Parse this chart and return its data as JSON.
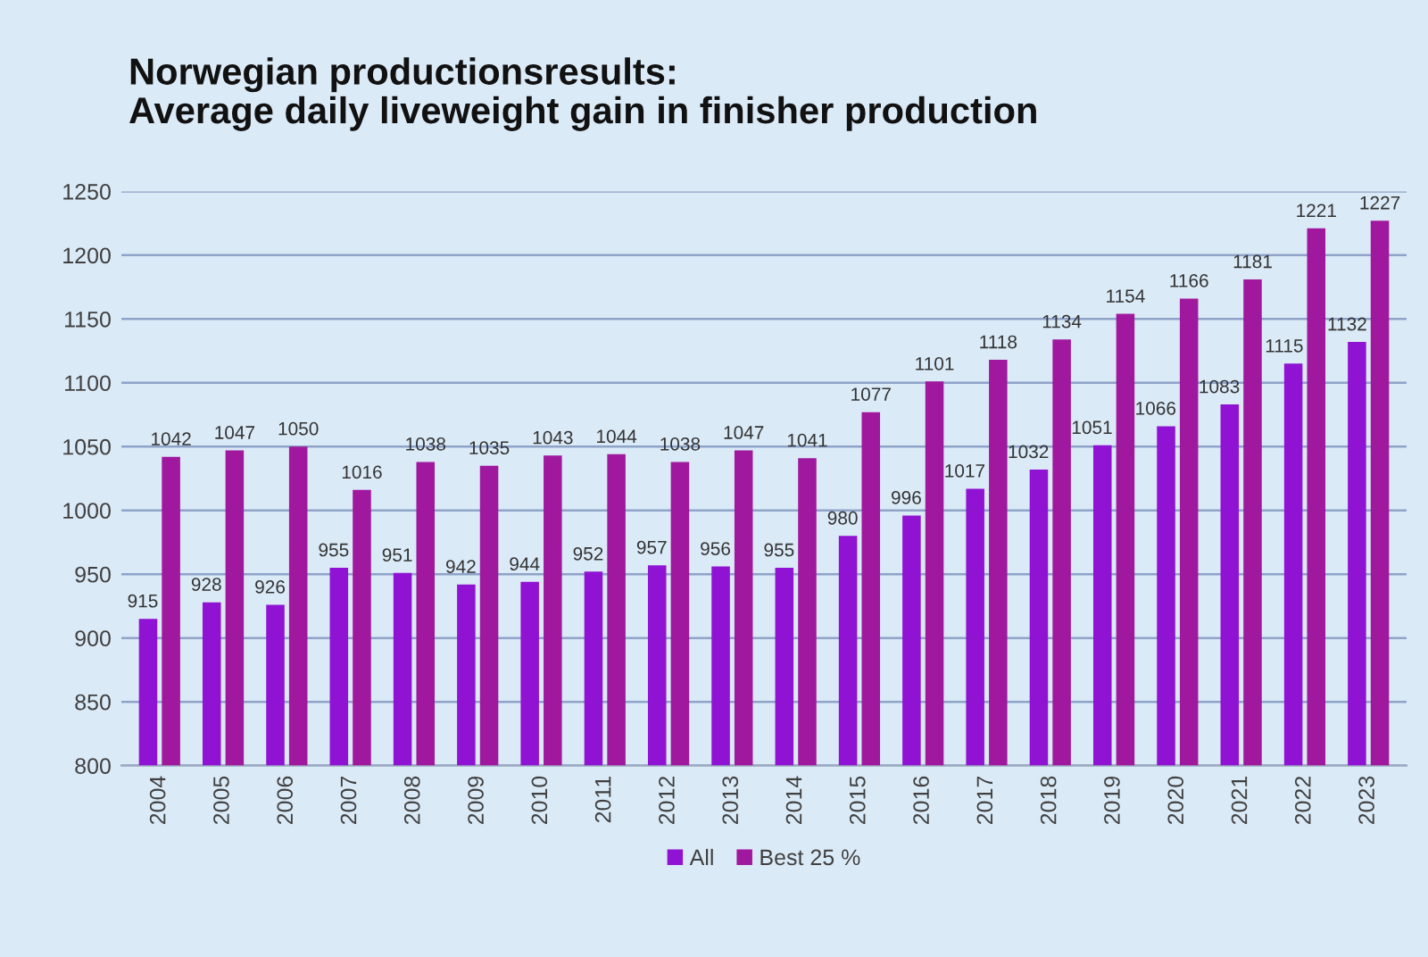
{
  "chart_data": {
    "type": "bar",
    "title": "Norwegian productionsresults:\nAverage daily liveweight gain in finisher production",
    "categories": [
      "2004",
      "2005",
      "2006",
      "2007",
      "2008",
      "2009",
      "2010",
      "2011",
      "2012",
      "2013",
      "2014",
      "2015",
      "2016",
      "2017",
      "2018",
      "2019",
      "2020",
      "2021",
      "2022",
      "2023"
    ],
    "series": [
      {
        "name": "All",
        "color": "#9013d4",
        "values": [
          915,
          928,
          926,
          955,
          951,
          942,
          944,
          952,
          957,
          956,
          955,
          980,
          996,
          1017,
          1032,
          1051,
          1066,
          1083,
          1115,
          1132
        ]
      },
      {
        "name": "Best 25 %",
        "color": "#a0189e",
        "values": [
          1042,
          1047,
          1050,
          1016,
          1038,
          1035,
          1043,
          1044,
          1038,
          1047,
          1041,
          1077,
          1101,
          1118,
          1134,
          1154,
          1166,
          1181,
          1221,
          1227
        ]
      }
    ],
    "ylim": [
      800,
      1250
    ],
    "yticks": [
      800,
      850,
      900,
      950,
      1000,
      1050,
      1100,
      1150,
      1200,
      1250
    ],
    "grid": "y",
    "legend": "bottom",
    "data_labels": true
  }
}
